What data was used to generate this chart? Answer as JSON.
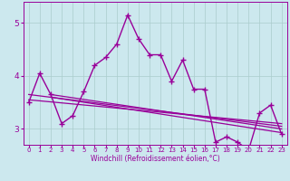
{
  "title": "",
  "xlabel": "Windchill (Refroidissement éolien,°C)",
  "bg_color": "#cce8ee",
  "line_color": "#990099",
  "grid_color": "#aacccc",
  "xlim": [
    -0.5,
    23.5
  ],
  "ylim": [
    2.7,
    5.4
  ],
  "yticks": [
    3,
    4,
    5
  ],
  "xticks": [
    0,
    1,
    2,
    3,
    4,
    5,
    6,
    7,
    8,
    9,
    10,
    11,
    12,
    13,
    14,
    15,
    16,
    17,
    18,
    19,
    20,
    21,
    22,
    23
  ],
  "series1_x": [
    0,
    1,
    2,
    3,
    4,
    5,
    6,
    7,
    8,
    9,
    10,
    11,
    12,
    13,
    14,
    15,
    16,
    17,
    18,
    19,
    20,
    21,
    22,
    23
  ],
  "series1_y": [
    3.5,
    4.05,
    3.65,
    3.1,
    3.25,
    3.7,
    4.2,
    4.35,
    4.6,
    5.15,
    4.7,
    4.4,
    4.4,
    3.9,
    4.3,
    3.75,
    3.75,
    2.75,
    2.85,
    2.75,
    2.6,
    3.3,
    3.45,
    2.9
  ],
  "trend1_x": [
    0,
    23
  ],
  "trend1_y": [
    3.65,
    3.05
  ],
  "trend2_x": [
    0,
    23
  ],
  "trend2_y": [
    3.55,
    3.1
  ],
  "trend3_x": [
    2,
    23
  ],
  "trend3_y": [
    3.65,
    3.0
  ],
  "trend4_x": [
    2,
    23
  ],
  "trend4_y": [
    3.6,
    2.93
  ]
}
